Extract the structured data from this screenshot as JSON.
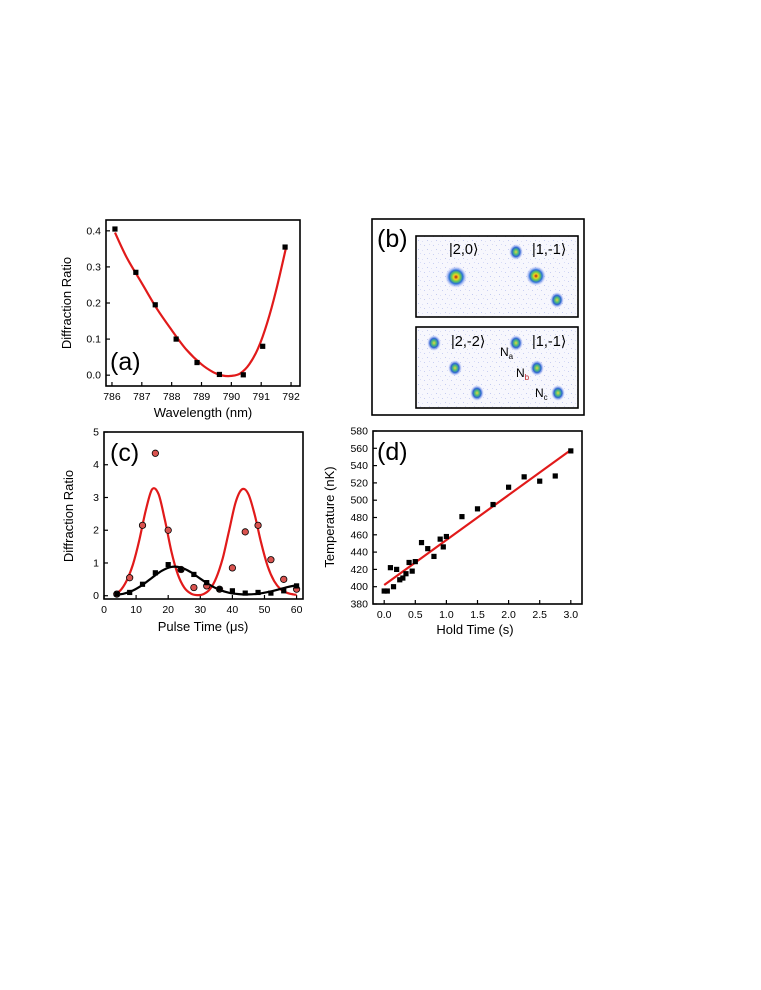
{
  "chart_data": [
    {
      "panel": "(a)",
      "type": "scatter",
      "xlabel": "Wavelength (nm)",
      "ylabel": "Diffraction Ratio",
      "xlim": [
        785.8,
        792.3
      ],
      "ylim": [
        -0.03,
        0.43
      ],
      "xticks": [
        786,
        787,
        788,
        789,
        790,
        791,
        792
      ],
      "yticks": [
        0.0,
        0.1,
        0.2,
        0.3,
        0.4
      ],
      "ytick_labels": [
        "0.0",
        "0.1",
        "0.2",
        "0.3",
        "0.4"
      ],
      "series": [
        {
          "name": "data",
          "marker": "square",
          "color": "#000000",
          "x": [
            786.1,
            786.8,
            787.45,
            788.15,
            788.85,
            789.6,
            790.4,
            791.05,
            791.8
          ],
          "y": [
            0.405,
            0.285,
            0.195,
            0.1,
            0.035,
            0.002,
            0.001,
            0.08,
            0.355
          ]
        },
        {
          "name": "fit",
          "line": true,
          "color": "#e11a1a",
          "x": [
            786.1,
            786.5,
            787.0,
            787.5,
            788.0,
            788.5,
            789.0,
            789.4,
            789.7,
            790.0,
            790.3,
            790.6,
            790.9,
            791.2,
            791.5,
            791.85
          ],
          "y": [
            0.395,
            0.325,
            0.255,
            0.185,
            0.125,
            0.07,
            0.03,
            0.008,
            -0.001,
            -0.002,
            0.005,
            0.03,
            0.075,
            0.145,
            0.235,
            0.36
          ]
        }
      ]
    },
    {
      "panel": "(b)",
      "type": "image",
      "rows": [
        {
          "left_state": "|2,0⟩",
          "right_state": "|1,-1⟩"
        },
        {
          "left_state": "|2,-2⟩",
          "right_state": "|1,-1⟩",
          "labels": [
            {
              "main": "N",
              "sub": "a"
            },
            {
              "main": "N",
              "sub": "b"
            },
            {
              "main": "N",
              "sub": "c"
            }
          ]
        }
      ]
    },
    {
      "panel": "(c)",
      "type": "scatter",
      "xlabel": "Pulse Time (μs)",
      "ylabel": "Diffraction Ratio",
      "xlim": [
        0,
        62
      ],
      "ylim": [
        -0.1,
        5
      ],
      "xticks": [
        0,
        10,
        20,
        30,
        40,
        50,
        60
      ],
      "yticks": [
        0,
        1,
        2,
        3,
        4,
        5
      ],
      "series": [
        {
          "name": "red circles",
          "marker": "circle",
          "color": "#d9534f",
          "x": [
            4,
            8,
            12,
            16,
            20,
            24,
            28,
            32,
            36,
            40,
            44,
            48,
            52,
            56,
            60
          ],
          "y": [
            0.05,
            0.55,
            2.15,
            4.35,
            2.0,
            0.8,
            0.25,
            0.3,
            0.2,
            0.85,
            1.95,
            2.15,
            1.1,
            0.5,
            0.2
          ]
        },
        {
          "name": "black squares",
          "marker": "square",
          "color": "#000000",
          "x": [
            4,
            8,
            12,
            16,
            20,
            24,
            28,
            32,
            36,
            40,
            44,
            48,
            52,
            56,
            60
          ],
          "y": [
            0.05,
            0.1,
            0.35,
            0.7,
            0.95,
            0.8,
            0.65,
            0.4,
            0.2,
            0.15,
            0.08,
            0.1,
            0.08,
            0.15,
            0.3
          ]
        },
        {
          "name": "red fit",
          "line": true,
          "color": "#e11a1a",
          "x": [
            3,
            5,
            7,
            9,
            11,
            13,
            15,
            17,
            19,
            21,
            23,
            25,
            27,
            29,
            31,
            33,
            35,
            37,
            39,
            41,
            43,
            45,
            47,
            49,
            51,
            53,
            55,
            57,
            59,
            60
          ],
          "y": [
            0.05,
            0.15,
            0.45,
            0.95,
            1.7,
            2.6,
            3.25,
            3.1,
            2.3,
            1.35,
            0.65,
            0.25,
            0.07,
            0.02,
            0.05,
            0.2,
            0.55,
            1.15,
            2.0,
            2.85,
            3.25,
            3.1,
            2.45,
            1.6,
            0.9,
            0.45,
            0.2,
            0.09,
            0.04,
            0.03
          ]
        },
        {
          "name": "black fit",
          "line": true,
          "color": "#000000",
          "x": [
            3,
            6,
            9,
            12,
            15,
            18,
            21,
            24,
            27,
            30,
            33,
            36,
            39,
            42,
            45,
            48,
            51,
            54,
            57,
            60
          ],
          "y": [
            0.02,
            0.06,
            0.16,
            0.33,
            0.55,
            0.76,
            0.88,
            0.86,
            0.72,
            0.52,
            0.33,
            0.18,
            0.09,
            0.05,
            0.04,
            0.06,
            0.11,
            0.18,
            0.26,
            0.32
          ]
        }
      ]
    },
    {
      "panel": "(d)",
      "type": "scatter",
      "xlabel": "Hold Time (s)",
      "ylabel": "Temperature (nK)",
      "xlim": [
        -0.18,
        3.18
      ],
      "ylim": [
        380,
        580
      ],
      "xticks": [
        0.0,
        0.5,
        1.0,
        1.5,
        2.0,
        2.5,
        3.0
      ],
      "xtick_labels": [
        "0.0",
        "0.5",
        "1.0",
        "1.5",
        "2.0",
        "2.5",
        "3.0"
      ],
      "yticks": [
        380,
        400,
        420,
        440,
        460,
        480,
        500,
        520,
        540,
        560,
        580
      ],
      "series": [
        {
          "name": "data",
          "marker": "square",
          "color": "#000000",
          "x": [
            0.0,
            0.05,
            0.1,
            0.15,
            0.2,
            0.25,
            0.3,
            0.35,
            0.4,
            0.45,
            0.5,
            0.6,
            0.7,
            0.8,
            0.9,
            0.95,
            1.0,
            1.25,
            1.5,
            1.75,
            2.0,
            2.25,
            2.5,
            2.75,
            3.0
          ],
          "y": [
            395,
            395,
            422,
            400,
            420,
            408,
            410,
            415,
            428,
            418,
            429,
            451,
            444,
            435,
            455,
            446,
            458,
            481,
            490,
            495,
            515,
            527,
            522,
            528,
            557
          ]
        },
        {
          "name": "linear fit",
          "line": true,
          "color": "#e11a1a",
          "x": [
            0.0,
            3.0
          ],
          "y": [
            402,
            558
          ]
        }
      ]
    }
  ]
}
